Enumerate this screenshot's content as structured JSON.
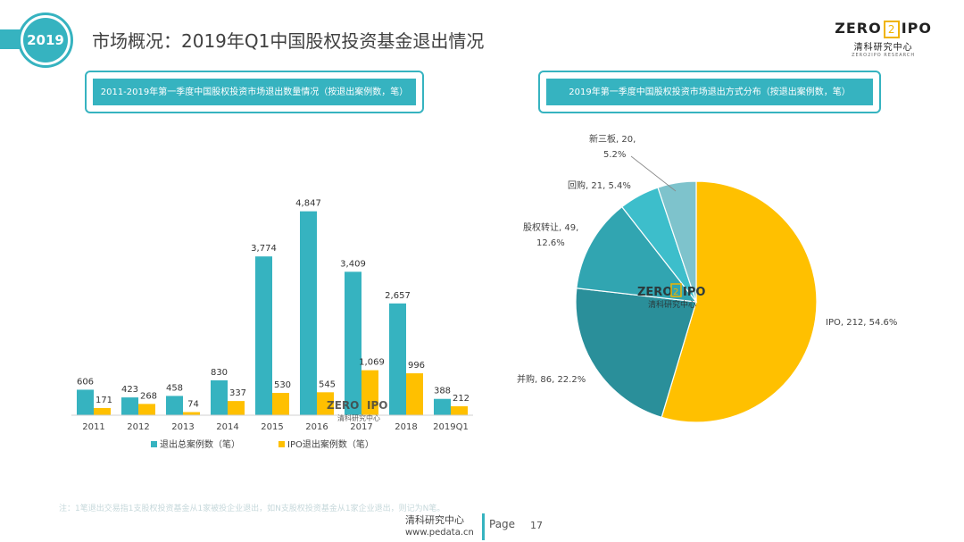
{
  "header": {
    "year_badge": "2019",
    "title": "市场概况：2019年Q1中国股权投资基金退出情况",
    "logo_zero": "ZERO",
    "logo_two": "2",
    "logo_ipo": "IPO",
    "logo_cn": "清科研究中心",
    "logo_en": "ZERO2IPO RESEARCH"
  },
  "colors": {
    "accent": "#36b3c0",
    "total": "#36b3c0",
    "ipo": "#ffc000"
  },
  "chart_data": [
    {
      "type": "bar",
      "title": "2011-2019年第一季度中国股权投资市场退出数量情况（按退出案例数，笔）",
      "categories": [
        "2011",
        "2012",
        "2013",
        "2014",
        "2015",
        "2016",
        "2017",
        "2018",
        "2019Q1"
      ],
      "series": [
        {
          "name": "退出总案例数（笔）",
          "values": [
            606,
            423,
            458,
            830,
            3774,
            4847,
            3409,
            2657,
            388
          ],
          "color": "#36b3c0"
        },
        {
          "name": "IPO退出案例数（笔）",
          "values": [
            171,
            268,
            74,
            337,
            530,
            545,
            1069,
            996,
            212
          ],
          "color": "#ffc000"
        }
      ],
      "value_labels": {
        "total": [
          "606",
          "423",
          "458",
          "830",
          "3,774",
          "4,847",
          "3,409",
          "2,657",
          "388"
        ],
        "ipo": [
          "171",
          "268",
          "74",
          "337",
          "530",
          "545",
          "1,069",
          "996",
          "212"
        ]
      },
      "ylim": [
        0,
        5200
      ],
      "grid": false,
      "legend": "bottom"
    },
    {
      "type": "pie",
      "title": "2019年第一季度中国股权投资市场退出方式分布（按退出案例数，笔）",
      "slices": [
        {
          "name": "IPO",
          "value": 212,
          "percent": "54.6%",
          "label": "IPO, 212, 54.6%",
          "color": "#ffc000"
        },
        {
          "name": "并购",
          "value": 86,
          "percent": "22.2%",
          "label": "并购, 86, 22.2%",
          "color": "#2a8f9a"
        },
        {
          "name": "股权转让",
          "value": 49,
          "percent": "12.6%",
          "label_line1": "股权转让, 49,",
          "label_line2": "12.6%",
          "color": "#31a5b1"
        },
        {
          "name": "回购",
          "value": 21,
          "percent": "5.4%",
          "label": "回购, 21, 5.4%",
          "color": "#3dbecb"
        },
        {
          "name": "新三板",
          "value": 20,
          "percent": "5.2%",
          "label_line1": "新三板, 20,",
          "label_line2": "5.2%",
          "color": "#7ec3cc"
        }
      ]
    }
  ],
  "watermark": {
    "zero": "ZERO",
    "two": "2",
    "ipo": "IPO",
    "cn": "清科研究中心"
  },
  "note": "注：1笔退出交易指1支股权投资基金从1家被投企业退出，如N支股权投资基金从1家企业退出，则记为N笔。",
  "footer": {
    "org": "清科研究中心",
    "url": "www.pedata.cn",
    "page_label": "Page",
    "page_number": "17"
  }
}
